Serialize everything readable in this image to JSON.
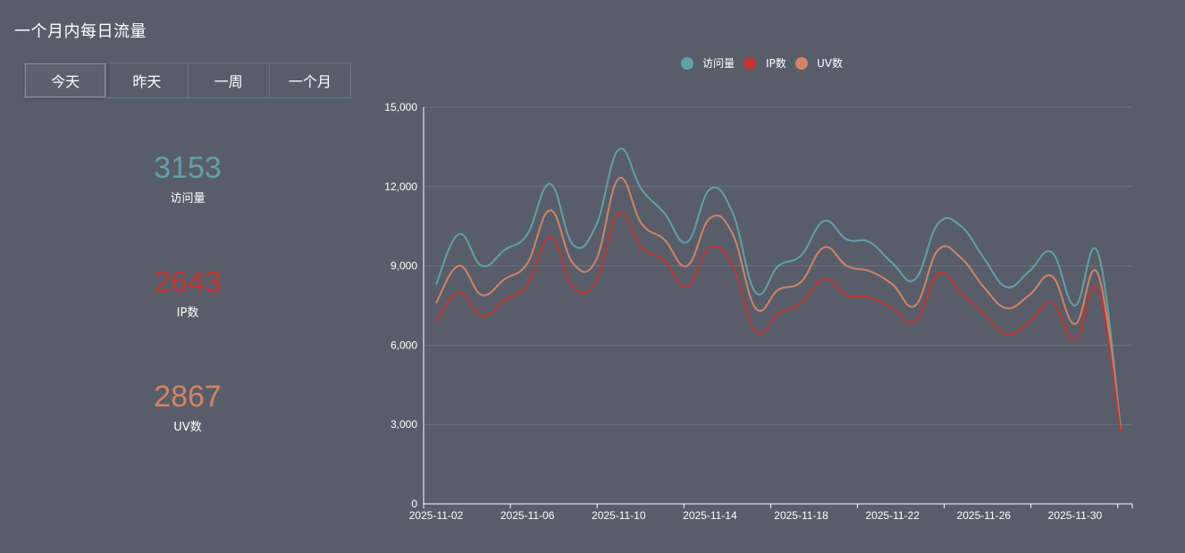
{
  "header": {
    "title": "一个月内每日流量"
  },
  "tabs": [
    {
      "label": "今天",
      "active": true
    },
    {
      "label": "昨天",
      "active": false
    },
    {
      "label": "一周",
      "active": false
    },
    {
      "label": "一个月",
      "active": false
    }
  ],
  "stats": [
    {
      "value": "3153",
      "label": "访问量",
      "color": "#61a0a8"
    },
    {
      "value": "2643",
      "label": "IP数",
      "color": "#c23531"
    },
    {
      "value": "2867",
      "label": "UV数",
      "color": "#d48265"
    }
  ],
  "chart_data": {
    "type": "line",
    "title": "",
    "xlabel": "",
    "ylabel": "",
    "ylim": [
      0,
      15000
    ],
    "yticks": [
      0,
      3000,
      6000,
      9000,
      12000,
      15000
    ],
    "ytick_labels": [
      "0",
      "3,000",
      "6,000",
      "9,000",
      "12,000",
      "15,000"
    ],
    "x": [
      "2025-11-02",
      "2025-11-03",
      "2025-11-04",
      "2025-11-05",
      "2025-11-06",
      "2025-11-07",
      "2025-11-08",
      "2025-11-09",
      "2025-11-10",
      "2025-11-11",
      "2025-11-12",
      "2025-11-13",
      "2025-11-14",
      "2025-11-15",
      "2025-11-16",
      "2025-11-17",
      "2025-11-18",
      "2025-11-19",
      "2025-11-20",
      "2025-11-21",
      "2025-11-22",
      "2025-11-23",
      "2025-11-24",
      "2025-11-25",
      "2025-11-26",
      "2025-11-27",
      "2025-11-28",
      "2025-11-29",
      "2025-11-30",
      "2025-12-01",
      "2025-12-02"
    ],
    "xtick_labels": [
      "2025-11-02",
      "2025-11-06",
      "2025-11-10",
      "2025-11-14",
      "2025-11-18",
      "2025-11-22",
      "2025-11-26",
      "2025-11-30"
    ],
    "xtick_label_indices": [
      0,
      4,
      8,
      12,
      16,
      20,
      24,
      28
    ],
    "legend": [
      "访问量",
      "IP数",
      "UV数"
    ],
    "legend_position": "top-center",
    "series": [
      {
        "name": "访问量",
        "color": "#61a0a8",
        "values": [
          8300,
          10200,
          9000,
          9600,
          10200,
          12100,
          9800,
          10500,
          13400,
          11900,
          11000,
          9900,
          11900,
          11000,
          8000,
          9000,
          9400,
          10700,
          10000,
          9900,
          9100,
          8500,
          10600,
          10500,
          9300,
          8200,
          8800,
          9500,
          7500,
          9500,
          2900
        ]
      },
      {
        "name": "IP数",
        "color": "#c23531",
        "values": [
          6900,
          8000,
          7100,
          7700,
          8300,
          10100,
          8200,
          8400,
          11000,
          9700,
          9200,
          8200,
          9700,
          9000,
          6500,
          7200,
          7600,
          8500,
          7900,
          7800,
          7400,
          6900,
          8700,
          8000,
          7200,
          6400,
          6900,
          7600,
          6200,
          8100,
          2700
        ]
      },
      {
        "name": "UV数",
        "color": "#d48265",
        "values": [
          7600,
          9000,
          7900,
          8500,
          9100,
          11100,
          9100,
          9200,
          12300,
          10600,
          10000,
          9000,
          10800,
          10200,
          7400,
          8100,
          8400,
          9700,
          9000,
          8800,
          8300,
          7500,
          9600,
          9300,
          8200,
          7400,
          7900,
          8600,
          6800,
          8700,
          2800
        ]
      }
    ]
  }
}
